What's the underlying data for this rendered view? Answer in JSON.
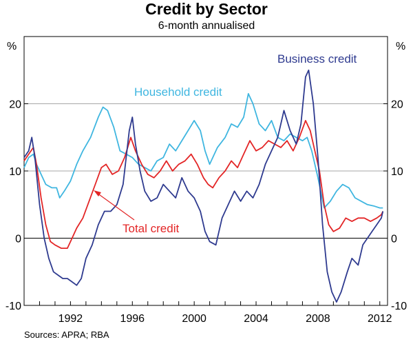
{
  "chart_data": {
    "type": "line",
    "title": "Credit by Sector",
    "subtitle": "6-month annualised",
    "y_unit_left": "%",
    "y_unit_right": "%",
    "xlim": [
      1989.0,
      2012.5
    ],
    "ylim": [
      -10,
      30
    ],
    "x_ticks": [
      1992,
      1996,
      2000,
      2004,
      2008,
      2012
    ],
    "y_ticks": [
      -10,
      0,
      10,
      20
    ],
    "grid": "horizontal at 10 and 20",
    "source": "Sources: APRA; RBA",
    "series": [
      {
        "name": "Household credit",
        "color": "#3fb6e0",
        "points": [
          [
            1989.0,
            10.5
          ],
          [
            1989.3,
            12
          ],
          [
            1989.6,
            12.5
          ],
          [
            1989.8,
            11
          ],
          [
            1990.1,
            9.5
          ],
          [
            1990.4,
            8
          ],
          [
            1990.8,
            7.5
          ],
          [
            1991.1,
            7.5
          ],
          [
            1991.3,
            6
          ],
          [
            1991.6,
            7
          ],
          [
            1992.0,
            8.5
          ],
          [
            1992.4,
            11
          ],
          [
            1992.8,
            13
          ],
          [
            1993.3,
            15
          ],
          [
            1993.8,
            18
          ],
          [
            1994.1,
            19.5
          ],
          [
            1994.4,
            19
          ],
          [
            1994.8,
            16.5
          ],
          [
            1995.2,
            13
          ],
          [
            1995.6,
            12.5
          ],
          [
            1996.0,
            12
          ],
          [
            1996.4,
            11
          ],
          [
            1996.8,
            10.5
          ],
          [
            1997.2,
            10
          ],
          [
            1997.6,
            11.5
          ],
          [
            1998.0,
            12
          ],
          [
            1998.4,
            14
          ],
          [
            1998.8,
            13
          ],
          [
            1999.2,
            14.5
          ],
          [
            1999.6,
            16
          ],
          [
            2000.0,
            17.5
          ],
          [
            2000.4,
            16
          ],
          [
            2000.7,
            13
          ],
          [
            2001.0,
            11
          ],
          [
            2001.5,
            13.5
          ],
          [
            2002.0,
            15
          ],
          [
            2002.4,
            17
          ],
          [
            2002.8,
            16.5
          ],
          [
            2003.2,
            18
          ],
          [
            2003.5,
            21.5
          ],
          [
            2003.8,
            20
          ],
          [
            2004.2,
            17
          ],
          [
            2004.6,
            16
          ],
          [
            2005.0,
            17.5
          ],
          [
            2005.4,
            15
          ],
          [
            2005.8,
            14.5
          ],
          [
            2006.2,
            15.5
          ],
          [
            2006.6,
            15
          ],
          [
            2007.0,
            14.5
          ],
          [
            2007.3,
            15
          ],
          [
            2007.6,
            13
          ],
          [
            2008.0,
            9
          ],
          [
            2008.4,
            4.5
          ],
          [
            2008.8,
            5.5
          ],
          [
            2009.2,
            7
          ],
          [
            2009.6,
            8
          ],
          [
            2010.0,
            7.5
          ],
          [
            2010.4,
            6
          ],
          [
            2010.8,
            5.5
          ],
          [
            2011.2,
            5
          ],
          [
            2011.6,
            4.8
          ],
          [
            2012.0,
            4.5
          ],
          [
            2012.2,
            4.5
          ]
        ]
      },
      {
        "name": "Business credit",
        "color": "#2e3a8f",
        "points": [
          [
            1989.0,
            12
          ],
          [
            1989.3,
            13
          ],
          [
            1989.5,
            15
          ],
          [
            1989.7,
            12
          ],
          [
            1990.0,
            5
          ],
          [
            1990.3,
            0
          ],
          [
            1990.6,
            -3
          ],
          [
            1990.9,
            -5
          ],
          [
            1991.2,
            -5.5
          ],
          [
            1991.5,
            -6
          ],
          [
            1991.8,
            -6
          ],
          [
            1992.1,
            -6.5
          ],
          [
            1992.4,
            -7
          ],
          [
            1992.7,
            -6
          ],
          [
            1993.0,
            -3
          ],
          [
            1993.4,
            -1
          ],
          [
            1993.8,
            2
          ],
          [
            1994.2,
            4
          ],
          [
            1994.6,
            4
          ],
          [
            1995.0,
            5
          ],
          [
            1995.4,
            8
          ],
          [
            1995.8,
            16
          ],
          [
            1996.0,
            18
          ],
          [
            1996.2,
            14
          ],
          [
            1996.5,
            10
          ],
          [
            1996.8,
            7
          ],
          [
            1997.2,
            5.5
          ],
          [
            1997.6,
            6
          ],
          [
            1998.0,
            8
          ],
          [
            1998.4,
            7
          ],
          [
            1998.8,
            6
          ],
          [
            1999.2,
            9
          ],
          [
            1999.6,
            7
          ],
          [
            2000.0,
            6
          ],
          [
            2000.4,
            4
          ],
          [
            2000.7,
            1
          ],
          [
            2001.0,
            -0.5
          ],
          [
            2001.4,
            -1
          ],
          [
            2001.8,
            3
          ],
          [
            2002.2,
            5
          ],
          [
            2002.6,
            7
          ],
          [
            2003.0,
            5.5
          ],
          [
            2003.4,
            7
          ],
          [
            2003.8,
            6
          ],
          [
            2004.2,
            8
          ],
          [
            2004.6,
            11
          ],
          [
            2005.0,
            13
          ],
          [
            2005.4,
            15
          ],
          [
            2005.8,
            19
          ],
          [
            2006.2,
            16
          ],
          [
            2006.6,
            14
          ],
          [
            2006.9,
            17
          ],
          [
            2007.2,
            24
          ],
          [
            2007.4,
            25
          ],
          [
            2007.7,
            20
          ],
          [
            2008.0,
            12
          ],
          [
            2008.3,
            2
          ],
          [
            2008.6,
            -5
          ],
          [
            2008.9,
            -8
          ],
          [
            2009.2,
            -9.5
          ],
          [
            2009.5,
            -8
          ],
          [
            2009.9,
            -5
          ],
          [
            2010.2,
            -3
          ],
          [
            2010.6,
            -4
          ],
          [
            2010.9,
            -1
          ],
          [
            2011.2,
            0
          ],
          [
            2011.5,
            1
          ],
          [
            2011.8,
            2
          ],
          [
            2012.1,
            3
          ],
          [
            2012.2,
            4
          ]
        ]
      },
      {
        "name": "Total credit",
        "color": "#e32526",
        "points": [
          [
            1989.0,
            11.5
          ],
          [
            1989.3,
            12.5
          ],
          [
            1989.6,
            13.5
          ],
          [
            1989.8,
            11
          ],
          [
            1990.1,
            6
          ],
          [
            1990.4,
            2
          ],
          [
            1990.7,
            -0.5
          ],
          [
            1991.0,
            -1
          ],
          [
            1991.4,
            -1.5
          ],
          [
            1991.8,
            -1.5
          ],
          [
            1992.1,
            0
          ],
          [
            1992.4,
            1.5
          ],
          [
            1992.8,
            3
          ],
          [
            1993.2,
            5.5
          ],
          [
            1993.6,
            8
          ],
          [
            1994.0,
            10.5
          ],
          [
            1994.3,
            11
          ],
          [
            1994.7,
            9.5
          ],
          [
            1995.1,
            10
          ],
          [
            1995.5,
            12
          ],
          [
            1995.9,
            15
          ],
          [
            1996.2,
            13
          ],
          [
            1996.6,
            11
          ],
          [
            1997.0,
            9.5
          ],
          [
            1997.4,
            9
          ],
          [
            1997.8,
            10
          ],
          [
            1998.2,
            11.5
          ],
          [
            1998.6,
            10
          ],
          [
            1999.0,
            11
          ],
          [
            1999.4,
            11.5
          ],
          [
            1999.8,
            12.5
          ],
          [
            2000.2,
            11
          ],
          [
            2000.6,
            9
          ],
          [
            2000.9,
            8
          ],
          [
            2001.2,
            7.5
          ],
          [
            2001.6,
            9
          ],
          [
            2002.0,
            10
          ],
          [
            2002.4,
            11.5
          ],
          [
            2002.8,
            10.5
          ],
          [
            2003.2,
            12.5
          ],
          [
            2003.6,
            14.5
          ],
          [
            2004.0,
            13
          ],
          [
            2004.4,
            13.5
          ],
          [
            2004.8,
            14.5
          ],
          [
            2005.2,
            14
          ],
          [
            2005.6,
            13.5
          ],
          [
            2006.0,
            14.5
          ],
          [
            2006.4,
            13
          ],
          [
            2006.8,
            15
          ],
          [
            2007.2,
            17.5
          ],
          [
            2007.5,
            16
          ],
          [
            2007.8,
            13
          ],
          [
            2008.1,
            10
          ],
          [
            2008.4,
            5
          ],
          [
            2008.7,
            2
          ],
          [
            2009.0,
            1
          ],
          [
            2009.4,
            1.5
          ],
          [
            2009.8,
            3
          ],
          [
            2010.2,
            2.5
          ],
          [
            2010.6,
            3
          ],
          [
            2011.0,
            3
          ],
          [
            2011.4,
            2.5
          ],
          [
            2011.8,
            3
          ],
          [
            2012.1,
            3.5
          ],
          [
            2012.2,
            4
          ]
        ]
      }
    ]
  }
}
